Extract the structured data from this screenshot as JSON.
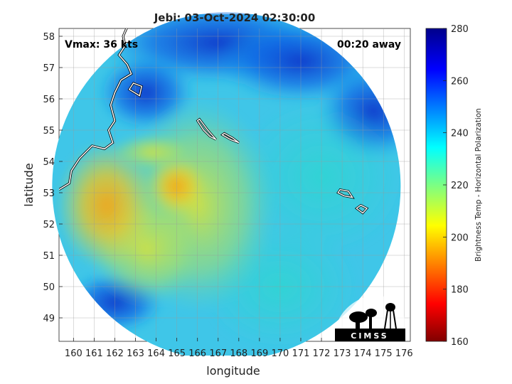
{
  "chart_data": {
    "type": "heatmap",
    "title": "Jebi: 03-Oct-2024 02:30:00",
    "xlabel": "longitude",
    "ylabel": "latitude",
    "xlim": [
      159.3,
      176.3
    ],
    "ylim": [
      48.25,
      58.25
    ],
    "xticks": [
      160,
      161,
      162,
      163,
      164,
      165,
      166,
      167,
      168,
      169,
      170,
      171,
      172,
      173,
      174,
      175,
      176
    ],
    "yticks": [
      49,
      50,
      51,
      52,
      53,
      54,
      55,
      56,
      57,
      58
    ],
    "grid": true,
    "colorbar": {
      "label": "Brightness Temp - Horizontal Polarization",
      "range": [
        160,
        280
      ],
      "ticks": [
        160,
        180,
        200,
        220,
        240,
        260,
        280
      ],
      "colormap": "jet",
      "position": "right"
    },
    "annotations": {
      "top_left": "Vmax: 36 kts",
      "top_right": "00:20 away"
    },
    "logo_text": "CIMSS",
    "field_summary": {
      "swath_shape": "circular",
      "swath_center": [
        167.4,
        53.2
      ],
      "warm_region_sw_peak": 198,
      "warm_region_location": "southwest near 159.5E-163E, 51.5N-53.5N",
      "cold_region_north": 262,
      "cold_region_location": "north of 56N",
      "east_background": 236
    }
  },
  "colors": {
    "cold": "#0b3fd1",
    "warm": "#f5a20a",
    "mid": "#27d2e0",
    "coast": "#ffffff"
  }
}
